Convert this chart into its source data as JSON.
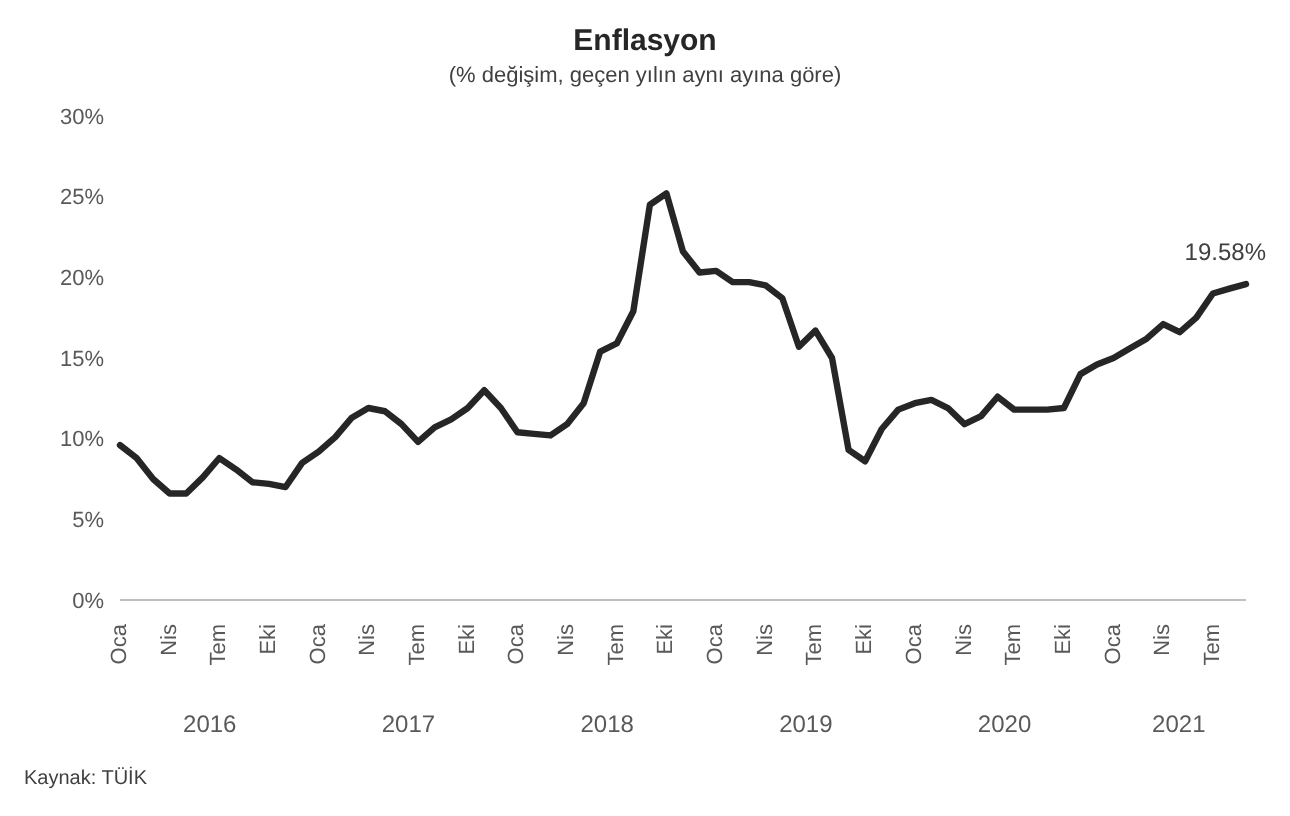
{
  "chart_data": {
    "type": "line",
    "title": "Enflasyon",
    "subtitle": "(% değişim, geçen yılın aynı ayına göre)",
    "categories": [
      "Oca",
      null,
      null,
      "Nis",
      null,
      null,
      "Tem",
      null,
      null,
      "Eki",
      null,
      null,
      "Oca",
      null,
      null,
      "Nis",
      null,
      null,
      "Tem",
      null,
      null,
      "Eki",
      null,
      null,
      "Oca",
      null,
      null,
      "Nis",
      null,
      null,
      "Tem",
      null,
      null,
      "Eki",
      null,
      null,
      "Oca",
      null,
      null,
      "Nis",
      null,
      null,
      "Tem",
      null,
      null,
      "Eki",
      null,
      null,
      "Oca",
      null,
      null,
      "Nis",
      null,
      null,
      "Tem",
      null,
      null,
      "Eki",
      null,
      null,
      "Oca",
      null,
      null,
      "Nis",
      null,
      null,
      "Tem",
      null,
      null
    ],
    "series": [
      {
        "color": "#262626",
        "values": [
          9.6,
          8.8,
          7.5,
          6.6,
          6.6,
          7.6,
          8.8,
          8.1,
          7.3,
          7.2,
          7.0,
          8.5,
          9.2,
          10.1,
          11.3,
          11.9,
          11.7,
          10.9,
          9.8,
          10.7,
          11.2,
          11.9,
          13.0,
          11.9,
          10.4,
          10.3,
          10.2,
          10.9,
          12.2,
          15.4,
          15.9,
          17.9,
          24.5,
          25.2,
          21.6,
          20.3,
          20.4,
          19.7,
          19.7,
          19.5,
          18.7,
          15.7,
          16.7,
          15.0,
          9.3,
          8.6,
          10.6,
          11.8,
          12.2,
          12.4,
          11.9,
          10.9,
          11.4,
          12.6,
          11.8,
          11.8,
          11.8,
          11.9,
          14.0,
          14.6,
          15.0,
          15.6,
          16.2,
          17.1,
          16.6,
          17.5,
          19.0,
          19.3,
          19.58
        ],
        "value_labels": [
          null,
          null,
          null,
          null,
          null,
          null,
          null,
          null,
          null,
          null,
          null,
          null,
          null,
          null,
          null,
          null,
          null,
          null,
          null,
          null,
          null,
          null,
          null,
          null,
          null,
          null,
          null,
          null,
          null,
          null,
          null,
          null,
          null,
          null,
          null,
          null,
          null,
          null,
          null,
          null,
          null,
          null,
          null,
          null,
          null,
          null,
          null,
          null,
          null,
          null,
          null,
          null,
          null,
          null,
          null,
          null,
          null,
          null,
          null,
          null,
          null,
          null,
          null,
          null,
          null,
          null,
          null,
          null,
          "19.58%"
        ]
      }
    ],
    "ylim": [
      0,
      30
    ],
    "yticks": [
      {
        "value": 0,
        "label": "0%"
      },
      {
        "value": 5,
        "label": "5%"
      },
      {
        "value": 10,
        "label": "10%"
      },
      {
        "value": 15,
        "label": "15%"
      },
      {
        "value": 20,
        "label": "20%"
      },
      {
        "value": 25,
        "label": "25%"
      },
      {
        "value": 30,
        "label": "30%"
      }
    ],
    "grid": false,
    "legend": false,
    "marker": "none",
    "line_style": "solid",
    "annotations": [
      "2016",
      "2017",
      "2018",
      "2019",
      "2020",
      "2021",
      "Kaynak: TÜİK"
    ]
  }
}
